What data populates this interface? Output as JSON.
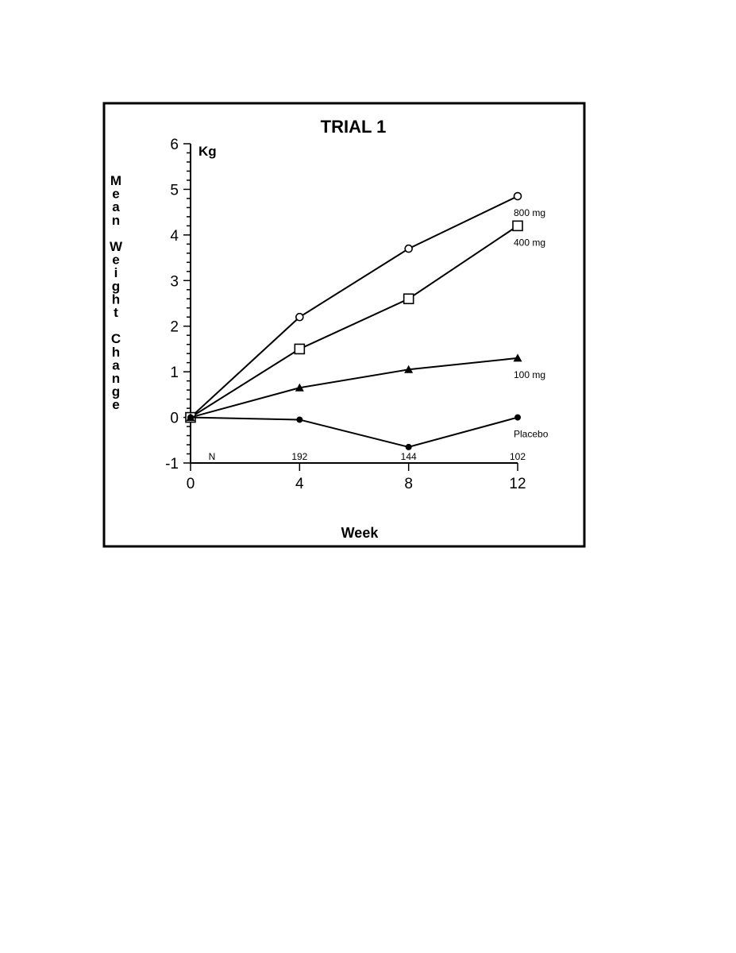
{
  "chart_data": {
    "type": "line",
    "title": "TRIAL 1",
    "xlabel": "Week",
    "ylabel": "Mean Weight Change",
    "yunit": "Kg",
    "x": [
      0,
      4,
      8,
      12
    ],
    "xlim": [
      0,
      12
    ],
    "ylim": [
      -1,
      6
    ],
    "xticks": [
      "0",
      "4",
      "8",
      "12"
    ],
    "yticks": [
      "6",
      "5",
      "4",
      "3",
      "2",
      "1",
      "0",
      "-1"
    ],
    "n_row": {
      "label": "N",
      "values": [
        "192",
        "144",
        "102"
      ]
    },
    "grid": false,
    "series": [
      {
        "name": "800 mg",
        "marker": "open-circle",
        "values": [
          0,
          2.2,
          3.7,
          4.85
        ]
      },
      {
        "name": "400 mg",
        "marker": "open-square",
        "values": [
          0,
          1.5,
          2.6,
          4.2
        ]
      },
      {
        "name": "100 mg",
        "marker": "filled-triangle",
        "values": [
          0,
          0.65,
          1.05,
          1.3
        ]
      },
      {
        "name": "Placebo",
        "marker": "filled-circle",
        "values": [
          0,
          -0.05,
          -0.65,
          0
        ]
      }
    ]
  }
}
